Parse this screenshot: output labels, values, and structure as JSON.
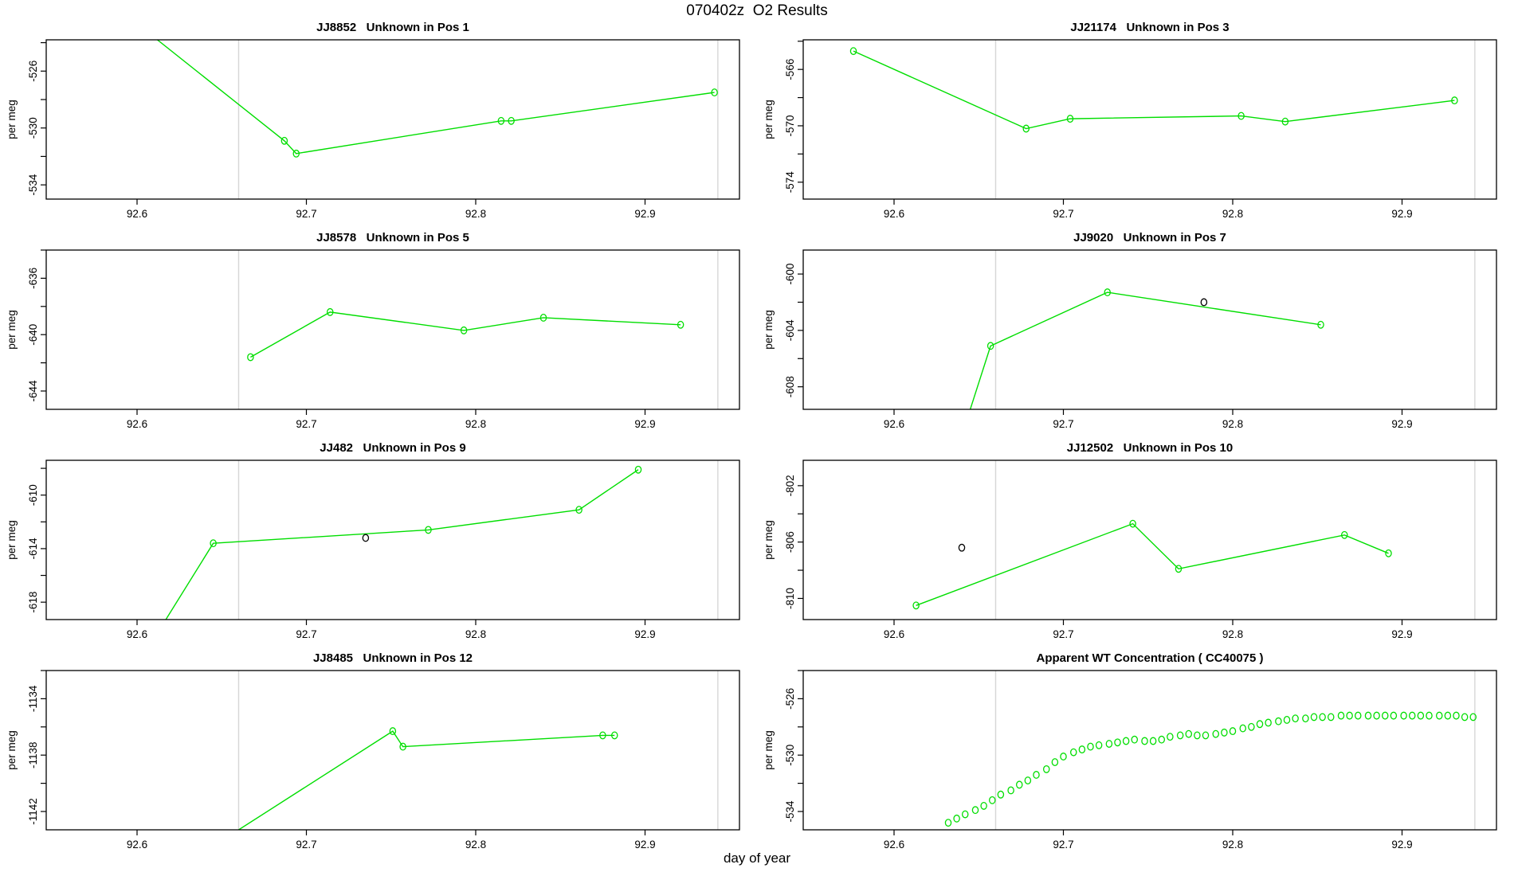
{
  "title": "070402z  O2 Results",
  "xlabel": "day of year",
  "colors": {
    "series": "#00DE00",
    "outlier": "#000000",
    "refline": "#D6D6D6",
    "frame": "#000000"
  },
  "x_axis": {
    "ticks": [
      92.6,
      92.7,
      92.8,
      92.9
    ],
    "tick_labels": [
      "92.6",
      "92.7",
      "92.8",
      "92.9"
    ],
    "ref_lines": [
      92.66,
      92.943
    ],
    "xlim": [
      92.546,
      92.956
    ]
  },
  "chart_data": [
    {
      "id": "pos1",
      "type": "line",
      "title": "JJ8852   Unknown in Pos 1",
      "ylabel": "per meg",
      "ylim": [
        -535.0,
        -523.8
      ],
      "yticks": [
        -534,
        -530,
        -526
      ],
      "path": [
        [
          92.612,
          -523.8
        ],
        [
          92.687,
          -530.9
        ],
        [
          92.694,
          -531.8
        ],
        [
          92.815,
          -529.5
        ],
        [
          92.821,
          -529.5
        ],
        [
          92.941,
          -527.5
        ]
      ],
      "points": [
        [
          92.687,
          -530.9
        ],
        [
          92.694,
          -531.8
        ],
        [
          92.815,
          -529.5
        ],
        [
          92.821,
          -529.5
        ],
        [
          92.941,
          -527.5
        ]
      ],
      "outliers": []
    },
    {
      "id": "pos3",
      "type": "line",
      "title": "JJ21174   Unknown in Pos 3",
      "ylabel": "per meg",
      "ylim": [
        -575.2,
        -563.9
      ],
      "yticks": [
        -574,
        -570,
        -566
      ],
      "path": [
        [
          92.576,
          -564.7
        ],
        [
          92.678,
          -570.2
        ],
        [
          92.704,
          -569.5
        ],
        [
          92.805,
          -569.3
        ],
        [
          92.831,
          -569.7
        ],
        [
          92.931,
          -568.2
        ]
      ],
      "points": [
        [
          92.576,
          -564.7
        ],
        [
          92.678,
          -570.2
        ],
        [
          92.704,
          -569.5
        ],
        [
          92.805,
          -569.3
        ],
        [
          92.831,
          -569.7
        ],
        [
          92.931,
          -568.2
        ]
      ],
      "outliers": []
    },
    {
      "id": "pos5",
      "type": "line",
      "title": "JJ8578   Unknown in Pos 5",
      "ylabel": "per meg",
      "ylim": [
        -645.3,
        -634.0
      ],
      "yticks": [
        -644,
        -640,
        -636
      ],
      "path": [
        [
          92.667,
          -641.6
        ],
        [
          92.714,
          -638.4
        ],
        [
          92.793,
          -639.7
        ],
        [
          92.84,
          -638.8
        ],
        [
          92.921,
          -639.3
        ]
      ],
      "points": [
        [
          92.667,
          -641.6
        ],
        [
          92.714,
          -638.4
        ],
        [
          92.793,
          -639.7
        ],
        [
          92.84,
          -638.8
        ],
        [
          92.921,
          -639.3
        ]
      ],
      "outliers": []
    },
    {
      "id": "pos7",
      "type": "line",
      "title": "JJ9020   Unknown in Pos 7",
      "ylabel": "per meg",
      "ylim": [
        -609.6,
        -598.3
      ],
      "yticks": [
        -608,
        -604,
        -600
      ],
      "path": [
        [
          92.645,
          -609.6
        ],
        [
          92.657,
          -605.1
        ],
        [
          92.726,
          -601.3
        ],
        [
          92.852,
          -603.6
        ]
      ],
      "points": [
        [
          92.657,
          -605.1
        ],
        [
          92.726,
          -601.3
        ],
        [
          92.852,
          -603.6
        ]
      ],
      "outliers": [
        [
          92.783,
          -602.0
        ]
      ]
    },
    {
      "id": "pos9",
      "type": "line",
      "title": "JJ482   Unknown in Pos 9",
      "ylabel": "per meg",
      "ylim": [
        -619.3,
        -607.4
      ],
      "yticks": [
        -618,
        -614,
        -610
      ],
      "path": [
        [
          92.617,
          -619.3
        ],
        [
          92.645,
          -613.6
        ],
        [
          92.772,
          -612.6
        ],
        [
          92.861,
          -611.1
        ],
        [
          92.896,
          -608.1
        ]
      ],
      "points": [
        [
          92.645,
          -613.6
        ],
        [
          92.772,
          -612.6
        ],
        [
          92.861,
          -611.1
        ],
        [
          92.896,
          -608.1
        ]
      ],
      "outliers": [
        [
          92.735,
          -613.2
        ]
      ]
    },
    {
      "id": "pos10",
      "type": "line",
      "title": "JJ12502   Unknown in Pos 10",
      "ylabel": "per meg",
      "ylim": [
        -811.5,
        -800.2
      ],
      "yticks": [
        -810,
        -806,
        -802
      ],
      "path": [
        [
          92.613,
          -810.5
        ],
        [
          92.741,
          -804.7
        ],
        [
          92.768,
          -807.9
        ],
        [
          92.866,
          -805.5
        ],
        [
          92.892,
          -806.8
        ]
      ],
      "points": [
        [
          92.613,
          -810.5
        ],
        [
          92.741,
          -804.7
        ],
        [
          92.768,
          -807.9
        ],
        [
          92.866,
          -805.5
        ],
        [
          92.892,
          -806.8
        ]
      ],
      "outliers": [
        [
          92.64,
          -806.4
        ]
      ]
    },
    {
      "id": "pos12",
      "type": "line",
      "title": "JJ8485   Unknown in Pos 12",
      "ylabel": "per meg",
      "ylim": [
        -1143.3,
        -1132.0
      ],
      "yticks": [
        -1142,
        -1138,
        -1134
      ],
      "path": [
        [
          92.66,
          -1143.3
        ],
        [
          92.751,
          -1136.3
        ],
        [
          92.757,
          -1137.4
        ],
        [
          92.875,
          -1136.6
        ],
        [
          92.882,
          -1136.6
        ]
      ],
      "points": [
        [
          92.751,
          -1136.3
        ],
        [
          92.757,
          -1137.4
        ],
        [
          92.875,
          -1136.6
        ],
        [
          92.882,
          -1136.6
        ]
      ],
      "outliers": []
    },
    {
      "id": "wt-concentration",
      "type": "scatter",
      "title": "Apparent WT Concentration ( CC40075 )",
      "ylabel": "per meg",
      "ylim": [
        -535.3,
        -524.0
      ],
      "yticks": [
        -534,
        -530,
        -526
      ],
      "path": [],
      "points": [
        [
          92.632,
          -534.8
        ],
        [
          92.637,
          -534.5
        ],
        [
          92.642,
          -534.2
        ],
        [
          92.648,
          -533.9
        ],
        [
          92.653,
          -533.6
        ],
        [
          92.658,
          -533.2
        ],
        [
          92.663,
          -532.8
        ],
        [
          92.669,
          -532.5
        ],
        [
          92.674,
          -532.1
        ],
        [
          92.679,
          -531.8
        ],
        [
          92.684,
          -531.4
        ],
        [
          92.69,
          -531.0
        ],
        [
          92.695,
          -530.5
        ],
        [
          92.7,
          -530.1
        ],
        [
          92.706,
          -529.8
        ],
        [
          92.711,
          -529.6
        ],
        [
          92.716,
          -529.4
        ],
        [
          92.721,
          -529.3
        ],
        [
          92.727,
          -529.2
        ],
        [
          92.732,
          -529.1
        ],
        [
          92.737,
          -529.0
        ],
        [
          92.742,
          -528.9
        ],
        [
          92.748,
          -529.0
        ],
        [
          92.753,
          -529.0
        ],
        [
          92.758,
          -528.9
        ],
        [
          92.763,
          -528.7
        ],
        [
          92.769,
          -528.6
        ],
        [
          92.774,
          -528.5
        ],
        [
          92.779,
          -528.6
        ],
        [
          92.784,
          -528.6
        ],
        [
          92.79,
          -528.5
        ],
        [
          92.795,
          -528.4
        ],
        [
          92.8,
          -528.3
        ],
        [
          92.806,
          -528.1
        ],
        [
          92.811,
          -528.0
        ],
        [
          92.816,
          -527.8
        ],
        [
          92.821,
          -527.7
        ],
        [
          92.827,
          -527.6
        ],
        [
          92.832,
          -527.5
        ],
        [
          92.837,
          -527.4
        ],
        [
          92.843,
          -527.4
        ],
        [
          92.848,
          -527.3
        ],
        [
          92.853,
          -527.3
        ],
        [
          92.858,
          -527.3
        ],
        [
          92.864,
          -527.2
        ],
        [
          92.869,
          -527.2
        ],
        [
          92.874,
          -527.2
        ],
        [
          92.88,
          -527.2
        ],
        [
          92.885,
          -527.2
        ],
        [
          92.89,
          -527.2
        ],
        [
          92.895,
          -527.2
        ],
        [
          92.901,
          -527.2
        ],
        [
          92.906,
          -527.2
        ],
        [
          92.911,
          -527.2
        ],
        [
          92.916,
          -527.2
        ],
        [
          92.922,
          -527.2
        ],
        [
          92.927,
          -527.2
        ],
        [
          92.932,
          -527.2
        ],
        [
          92.937,
          -527.3
        ],
        [
          92.942,
          -527.3
        ]
      ],
      "outliers": []
    }
  ]
}
